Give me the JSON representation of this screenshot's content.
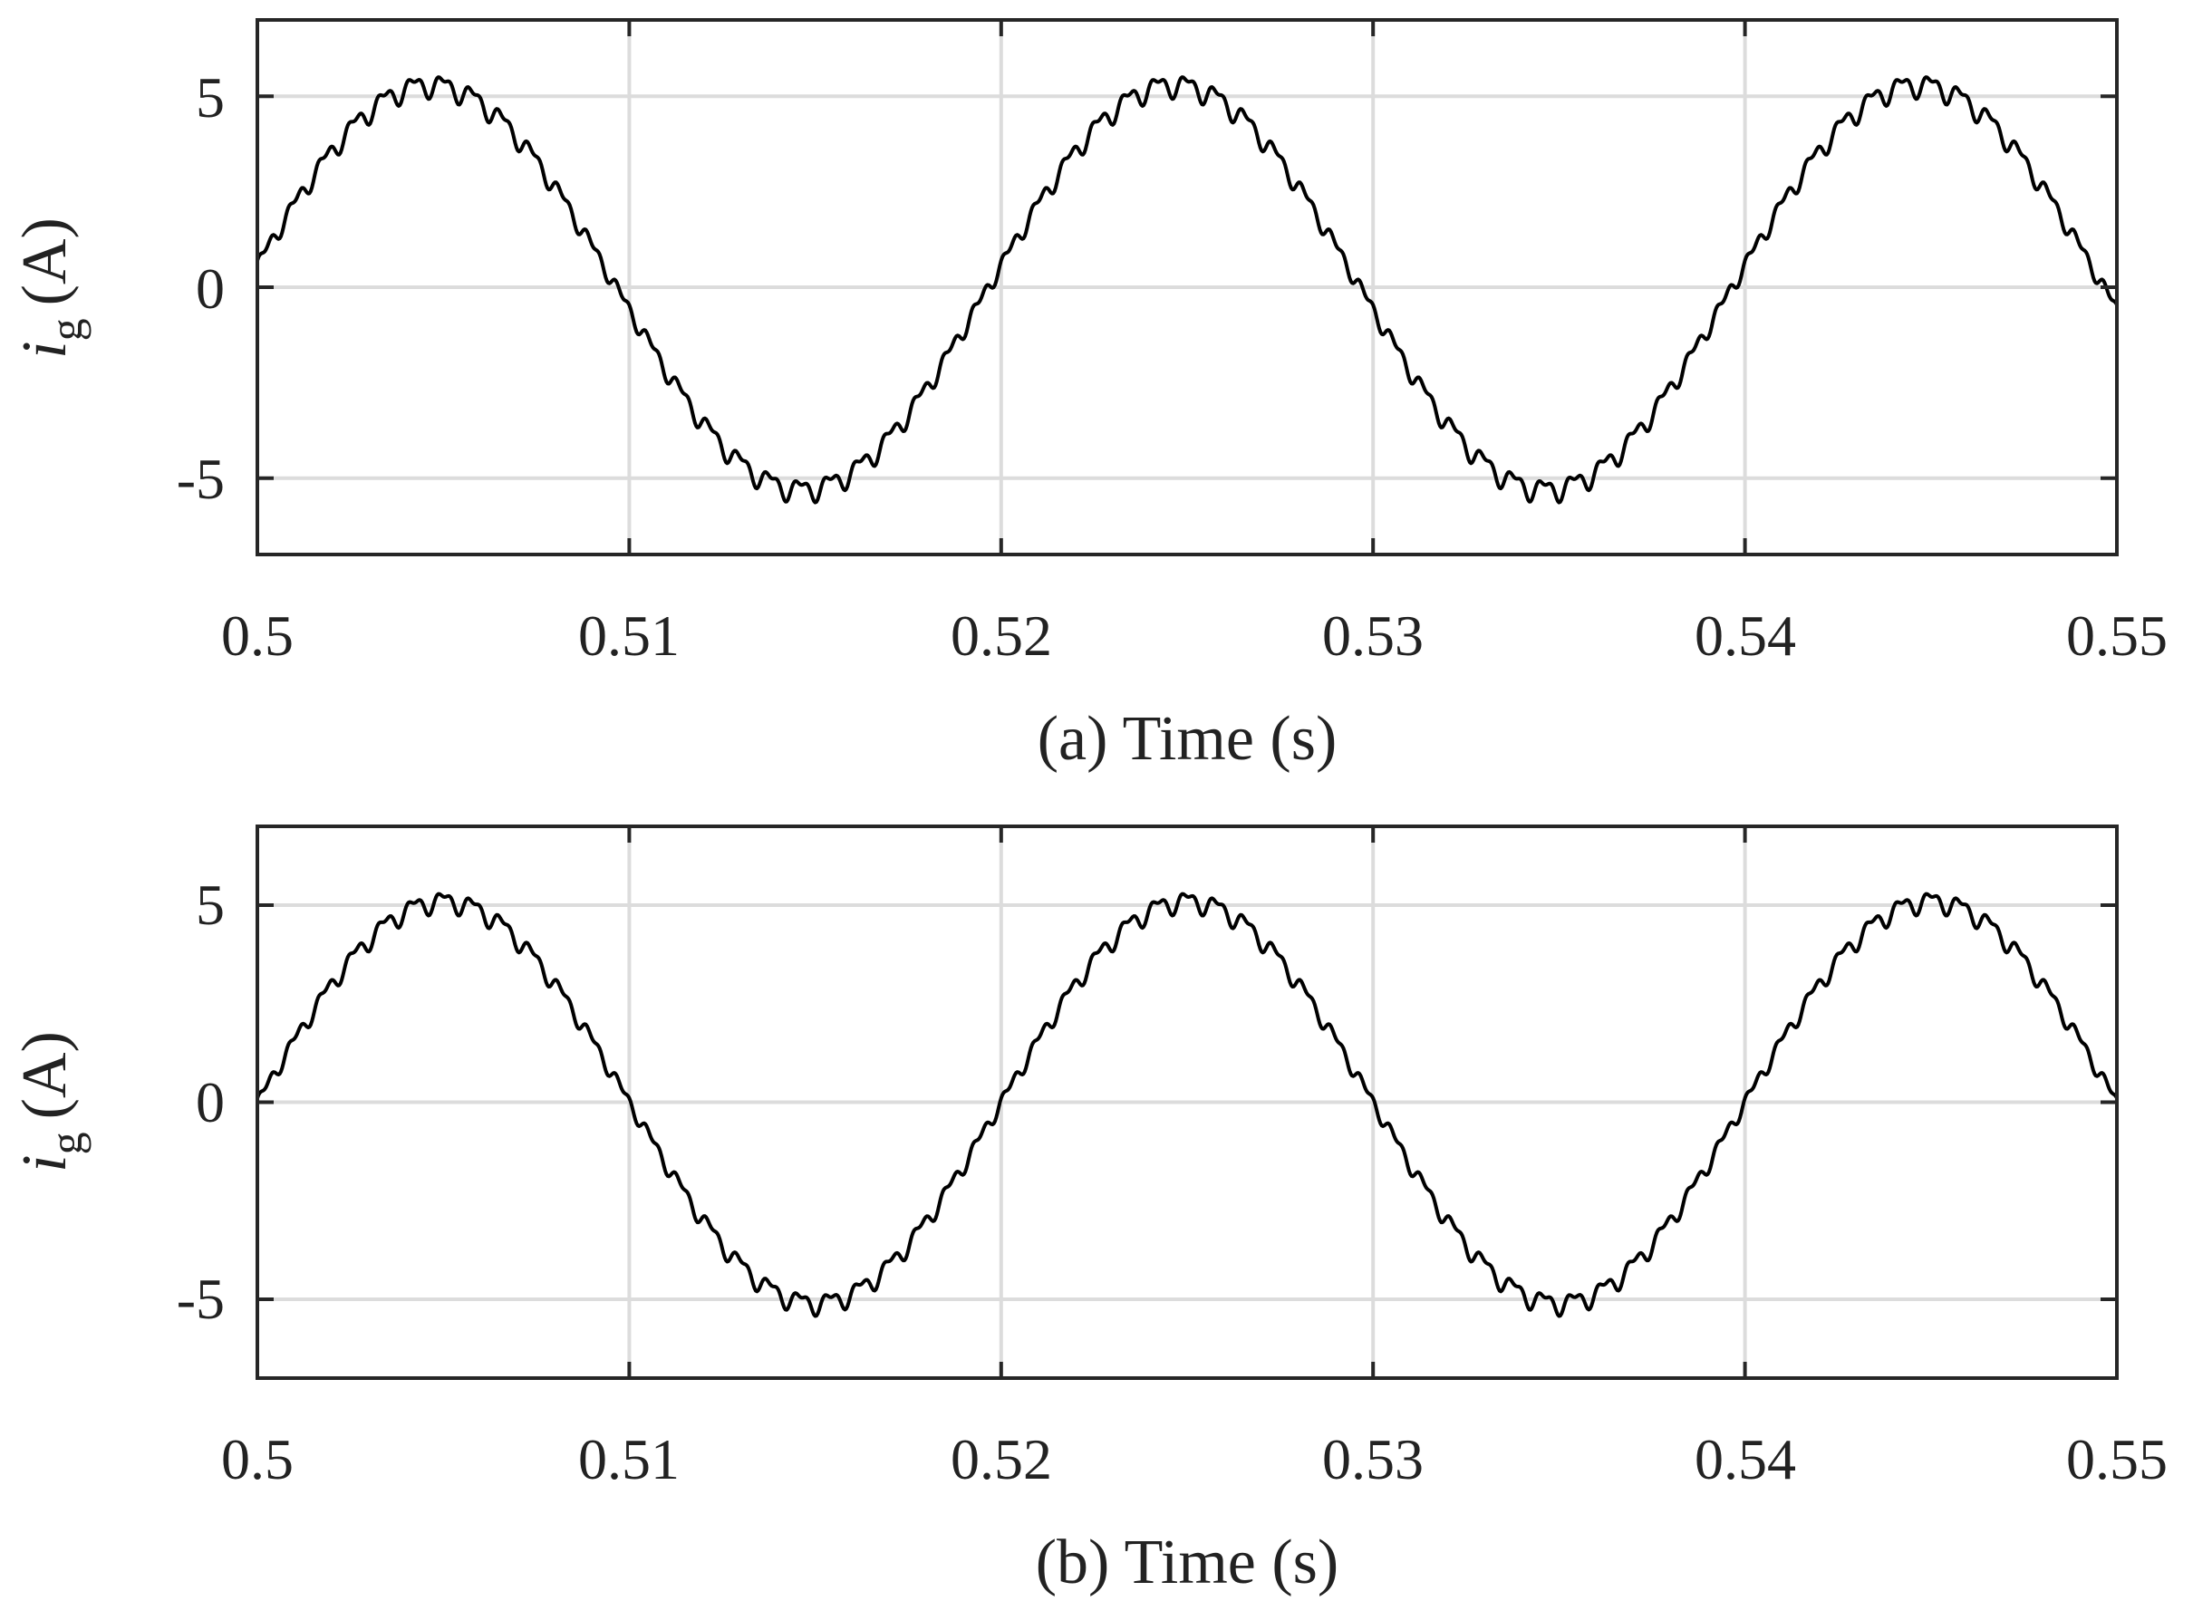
{
  "chart_data": [
    {
      "type": "line",
      "panel": "a",
      "xlabel": "(a) Time (s)",
      "ylabel_main": "i",
      "ylabel_sub": "g",
      "ylabel_unit": "(A)",
      "xlim": [
        0.5,
        0.55
      ],
      "ylim": [
        -7,
        7
      ],
      "xticks": [
        0.5,
        0.51,
        0.52,
        0.53,
        0.54,
        0.55
      ],
      "xtick_labels": [
        "0.5",
        "0.51",
        "0.52",
        "0.53",
        "0.54",
        "0.55"
      ],
      "yticks": [
        5,
        0,
        -5
      ],
      "ytick_labels": [
        "5",
        "0",
        "-5"
      ],
      "grid": true,
      "line_color": "#000000",
      "grid_color": "#dcdcdc",
      "series": [
        {
          "x": [
            0.5,
            0.5025,
            0.505,
            0.5075,
            0.51,
            0.5125,
            0.515,
            0.5175,
            0.52,
            0.5225,
            0.525,
            0.5275,
            0.53,
            0.5325,
            0.535,
            0.5375,
            0.54,
            0.5425,
            0.545,
            0.5475,
            0.55
          ],
          "y": [
            0.6,
            3.8,
            5.3,
            3.6,
            -0.5,
            -4.0,
            -5.3,
            -3.9,
            0.3,
            3.9,
            5.3,
            3.7,
            -0.6,
            -4.0,
            -5.3,
            -3.8,
            0.4,
            3.9,
            5.3,
            3.6,
            -0.7
          ],
          "amplitude": 5.3,
          "frequency_hz": 50,
          "phase_rad": 0.11,
          "ripple_amplitude": 0.25,
          "ripple_frequency_hz": 1250
        }
      ]
    },
    {
      "type": "line",
      "panel": "b",
      "xlabel": "(b) Time (s)",
      "ylabel_main": "i",
      "ylabel_sub": "g",
      "ylabel_unit": "(A)",
      "xlim": [
        0.5,
        0.55
      ],
      "ylim": [
        -7,
        7
      ],
      "xticks": [
        0.5,
        0.51,
        0.52,
        0.53,
        0.54,
        0.55
      ],
      "xtick_labels": [
        "0.5",
        "0.51",
        "0.52",
        "0.53",
        "0.54",
        "0.55"
      ],
      "yticks": [
        5,
        0,
        -5
      ],
      "ytick_labels": [
        "5",
        "0",
        "-5"
      ],
      "grid": true,
      "line_color": "#000000",
      "grid_color": "#dcdcdc",
      "series": [
        {
          "x": [
            0.5,
            0.5025,
            0.505,
            0.5075,
            0.51,
            0.5125,
            0.515,
            0.5175,
            0.52,
            0.5225,
            0.525,
            0.5275,
            0.53,
            0.5325,
            0.535,
            0.5375,
            0.54,
            0.5425,
            0.545,
            0.5475,
            0.55
          ],
          "y": [
            0.1,
            3.6,
            5.1,
            3.7,
            0.0,
            -3.6,
            -5.1,
            -3.7,
            0.0,
            3.6,
            5.1,
            3.7,
            0.0,
            -3.6,
            -5.1,
            -3.7,
            0.0,
            3.6,
            5.1,
            3.7,
            0.0
          ],
          "amplitude": 5.1,
          "frequency_hz": 50,
          "phase_rad": 0.0,
          "ripple_amplitude": 0.22,
          "ripple_frequency_hz": 1250
        }
      ]
    }
  ]
}
